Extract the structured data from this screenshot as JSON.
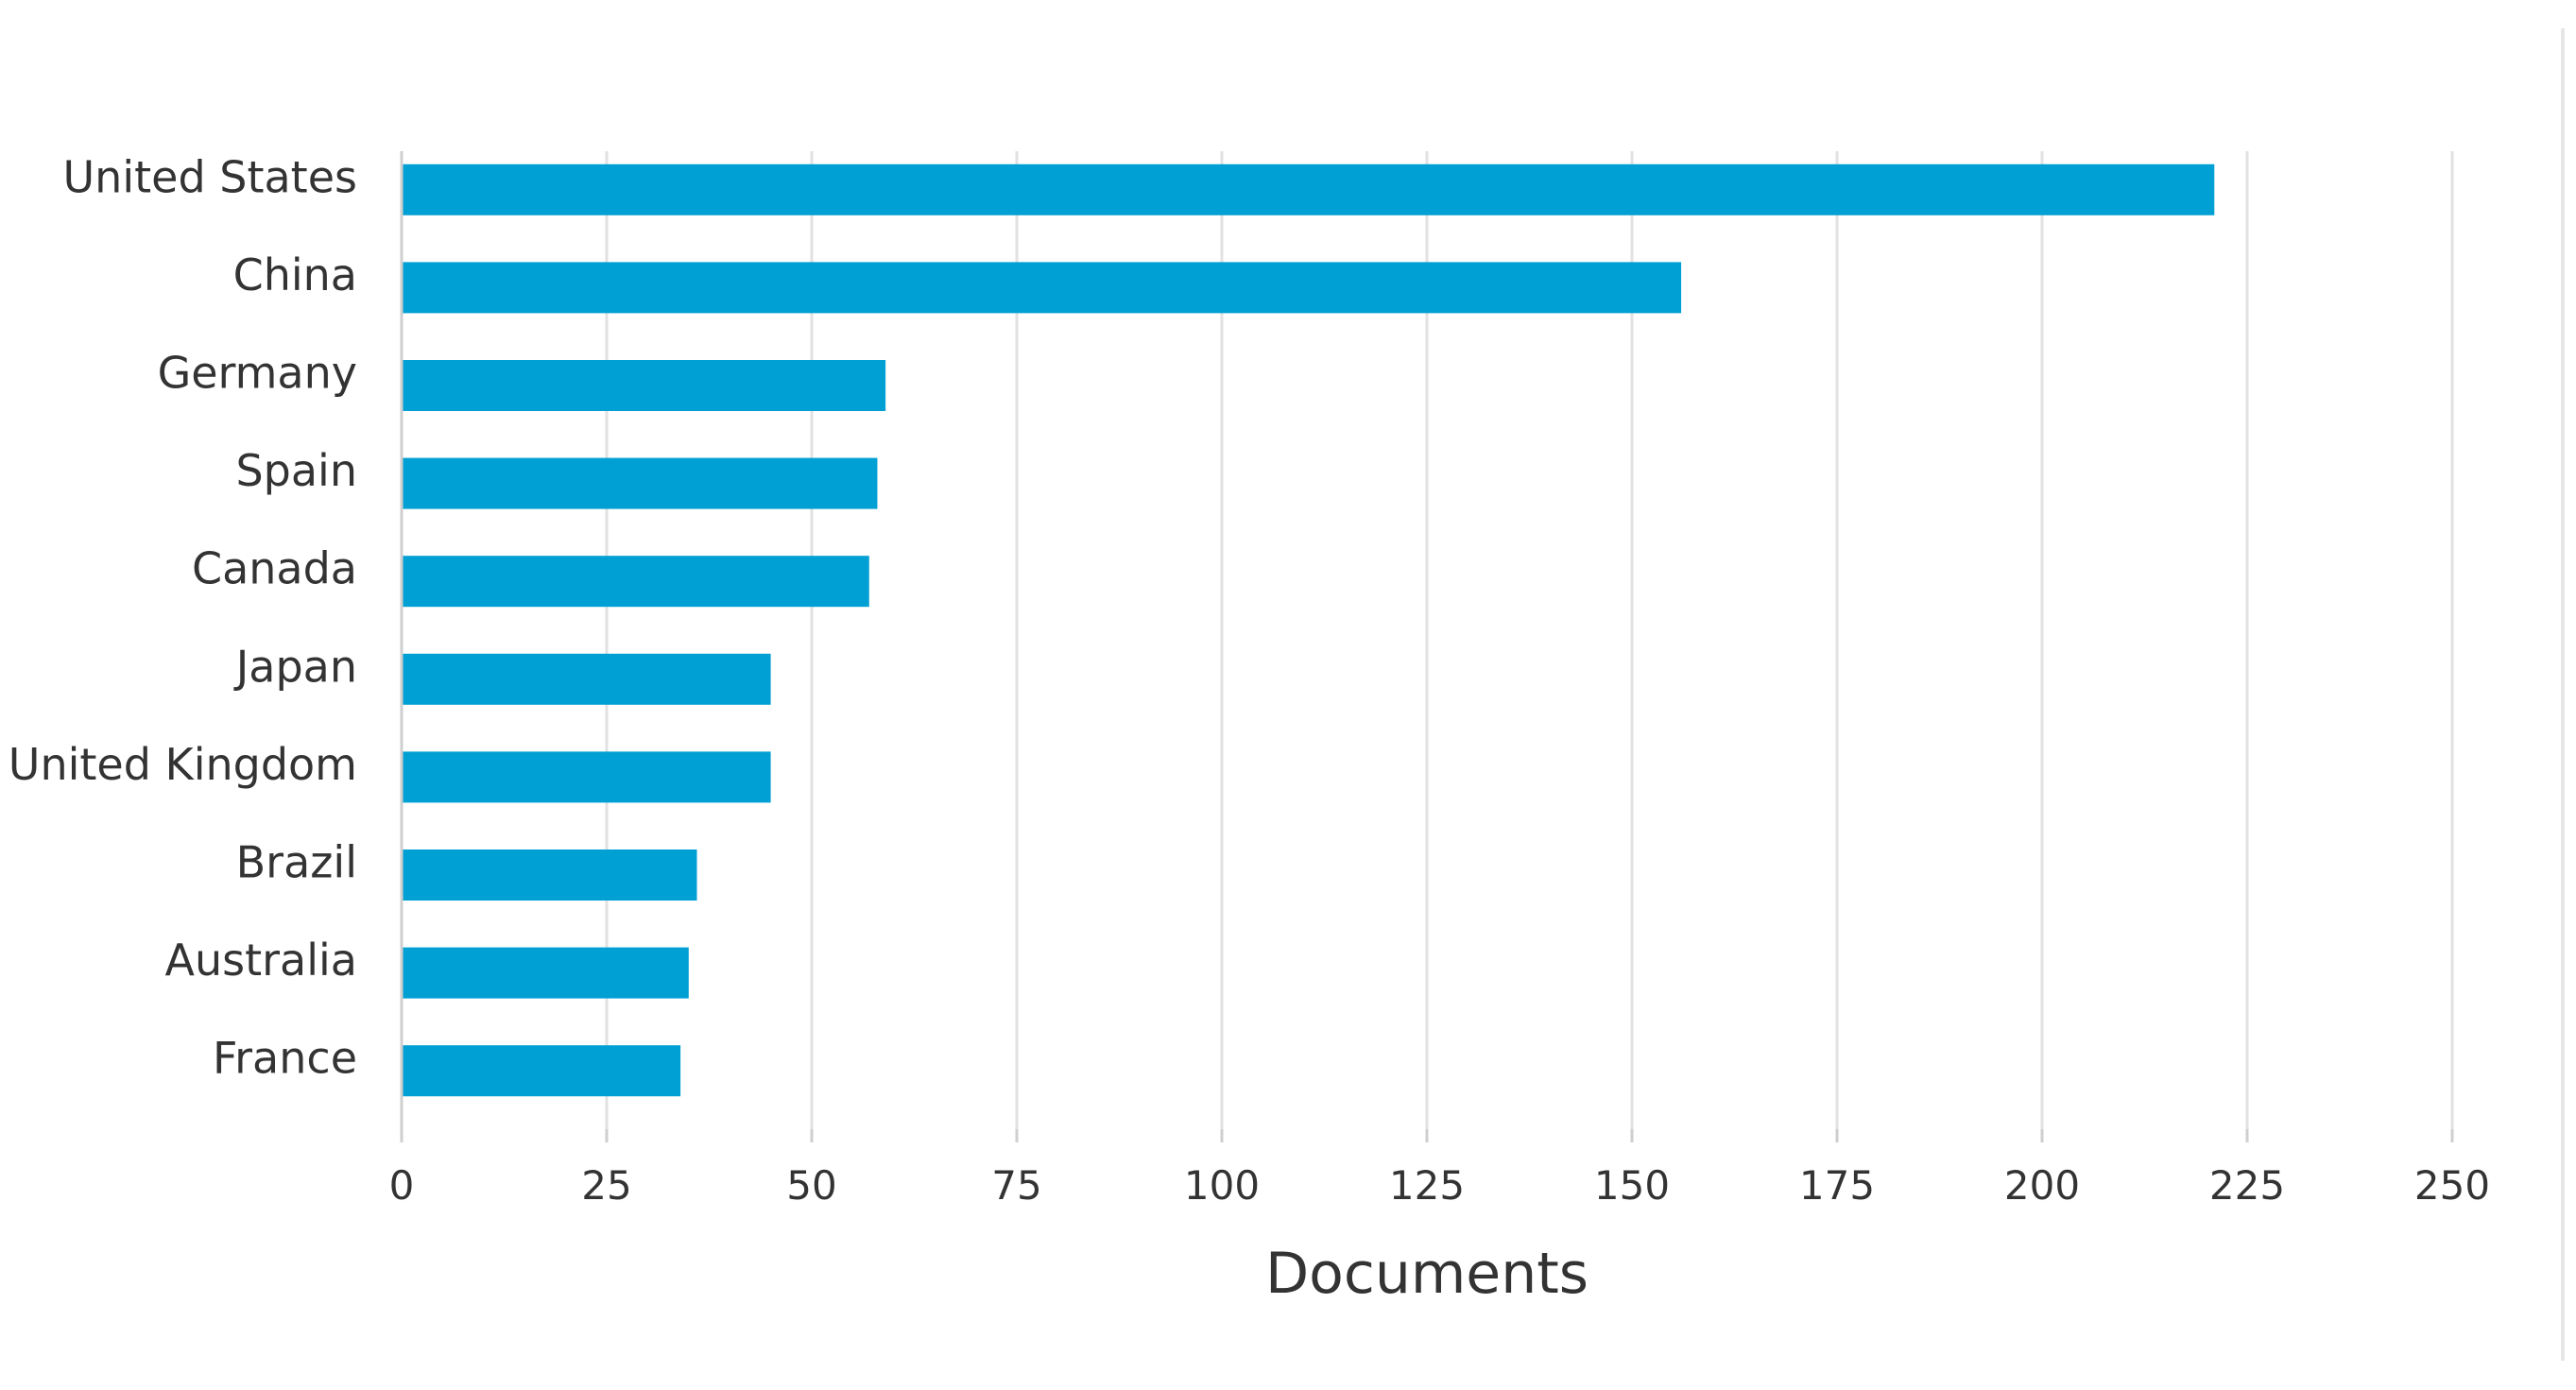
{
  "chart_data": {
    "type": "bar",
    "orientation": "horizontal",
    "categories": [
      "United States",
      "China",
      "Germany",
      "Spain",
      "Canada",
      "Japan",
      "United Kingdom",
      "Brazil",
      "Australia",
      "France"
    ],
    "values": [
      221,
      156,
      59,
      58,
      57,
      45,
      45,
      36,
      35,
      34
    ],
    "xlabel": "Documents",
    "ylabel": "",
    "xlim": [
      0,
      250
    ],
    "xticks": [
      0,
      25,
      50,
      75,
      100,
      125,
      150,
      175,
      200,
      225,
      250
    ],
    "grid": true,
    "bar_color": "#009fd4"
  }
}
